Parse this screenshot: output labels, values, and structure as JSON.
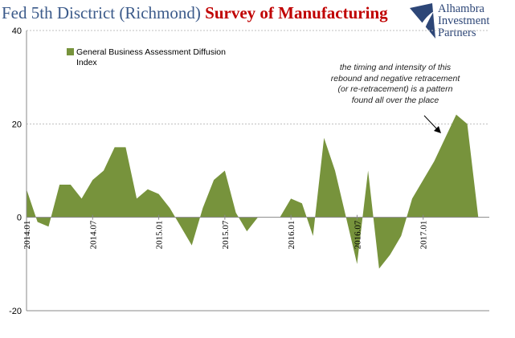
{
  "header": {
    "title_part1": "Fed 5th Disctrict (Richmond)",
    "title_part2": "Survey of Manufacturing"
  },
  "logo": {
    "line1": "Alhambra",
    "line2": "Investment",
    "line3": "Partners",
    "color": "#2d4677"
  },
  "annotation": {
    "line1": "the timing and intensity of this",
    "line2": "rebound and negative retracement",
    "line3": "(or re-retracement) is a pattern",
    "line4": "found all over the place"
  },
  "chart_data": {
    "type": "area",
    "title": "Fed 5th Disctrict (Richmond) Survey of Manufacturing",
    "ylim": [
      -20,
      40
    ],
    "yticks": [
      -20,
      0,
      20,
      40
    ],
    "xticks": [
      "2014.01",
      "2014.07",
      "2015.01",
      "2015.07",
      "2016.01",
      "2016.07",
      "2017.01"
    ],
    "grid": "horizontal dashed",
    "legend_position": "top-left",
    "colors": {
      "fill": "#77933c",
      "axis": "#888888",
      "grid": "#bfbfbf",
      "text": "#000000"
    },
    "series": [
      {
        "name": "General Business Assessment Diffusion Index",
        "x": [
          "2014.01",
          "2014.02",
          "2014.03",
          "2014.04",
          "2014.05",
          "2014.06",
          "2014.07",
          "2014.08",
          "2014.09",
          "2014.10",
          "2014.11",
          "2014.12",
          "2015.01",
          "2015.02",
          "2015.03",
          "2015.04",
          "2015.05",
          "2015.06",
          "2015.07",
          "2015.08",
          "2015.09",
          "2015.10",
          "2015.11",
          "2015.12",
          "2016.01",
          "2016.02",
          "2016.03",
          "2016.04",
          "2016.05",
          "2016.06",
          "2016.07",
          "2016.08",
          "2016.09",
          "2016.10",
          "2016.11",
          "2016.12",
          "2017.01",
          "2017.02",
          "2017.03",
          "2017.04",
          "2017.05",
          "2017.06",
          "2017.07"
        ],
        "values": [
          6,
          -1,
          -2,
          7,
          7,
          4,
          8,
          10,
          15,
          15,
          4,
          6,
          5,
          2,
          -2,
          -6,
          2,
          8,
          10,
          1,
          -3,
          0,
          0,
          0,
          4,
          3,
          -4,
          17,
          10,
          0,
          -10,
          10,
          -11,
          -8,
          -4,
          4,
          8,
          12,
          17,
          22,
          20,
          0,
          null
        ]
      }
    ]
  }
}
